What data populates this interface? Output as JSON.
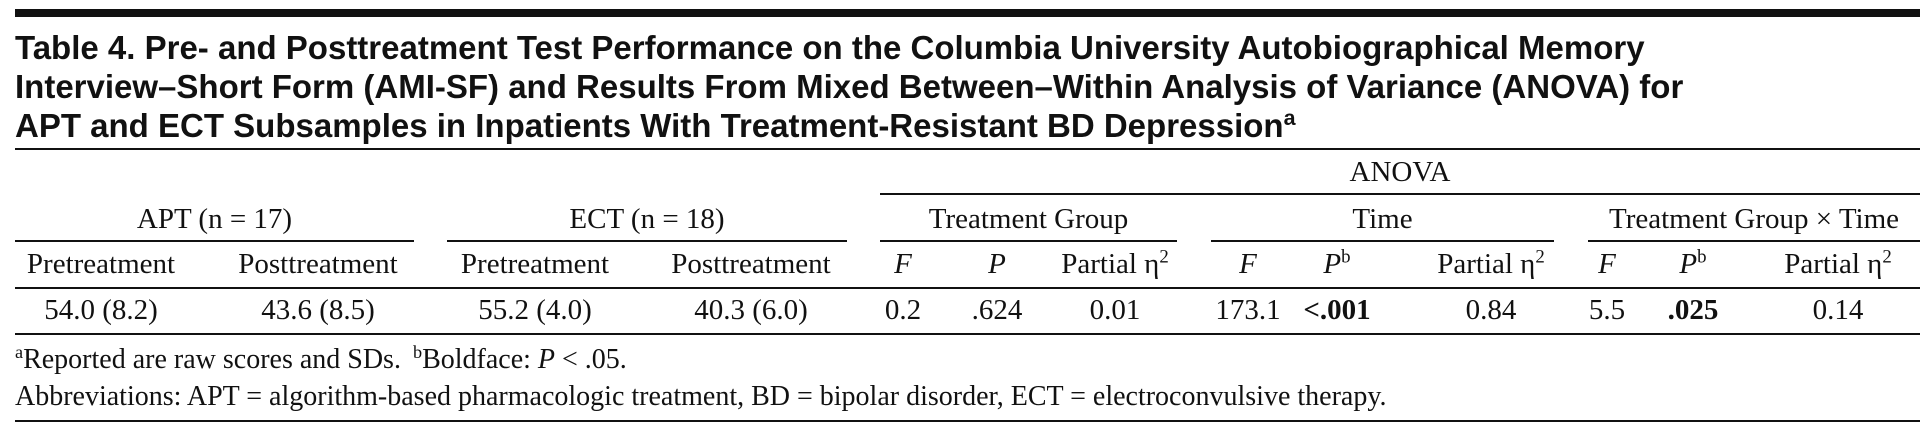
{
  "title": {
    "lines": [
      "Table 4. Pre- and Posttreatment Test Performance on the Columbia University Autobiographical Memory",
      "Interview–Short Form (AMI-SF) and Results From Mixed Between–Within Analysis of Variance (ANOVA) for",
      "APT and ECT Subsamples in Inpatients With Treatment-Resistant BD Depression"
    ],
    "note": "a"
  },
  "table": {
    "spanner": "ANOVA",
    "groups": [
      "APT (n = 17)",
      "ECT (n = 18)",
      "Treatment Group",
      "Time",
      "Treatment Group × Time"
    ],
    "columns": [
      {
        "text": "Pretreatment"
      },
      {
        "text": "Posttreatment"
      },
      {
        "text": "Pretreatment"
      },
      {
        "text": "Posttreatment"
      },
      {
        "text": "F",
        "italic": true
      },
      {
        "text": "P",
        "italic": true
      },
      {
        "text": "Partial η",
        "sup": "2"
      },
      {
        "text": "F",
        "italic": true
      },
      {
        "text": "P",
        "italic": true,
        "sup": "b"
      },
      {
        "text": "Partial η",
        "sup": "2"
      },
      {
        "text": "F",
        "italic": true
      },
      {
        "text": "P",
        "italic": true,
        "sup": "b"
      },
      {
        "text": "Partial η",
        "sup": "2"
      }
    ],
    "rows": [
      [
        "54.0 (8.2)",
        "43.6 (8.5)",
        "55.2 (4.0)",
        "40.3 (6.0)",
        "0.2",
        ".624",
        "0.01",
        "173.1",
        "<.001",
        "0.84",
        "5.5",
        ".025",
        "0.14"
      ]
    ],
    "bold": [
      [
        false,
        false,
        false,
        false,
        false,
        false,
        false,
        false,
        true,
        false,
        false,
        true,
        false
      ]
    ]
  },
  "footnotes": [
    [
      {
        "sup": "a"
      },
      {
        "text": "Reported are raw scores and SDs."
      },
      {
        "sup": "b"
      },
      {
        "text": "Boldface: "
      },
      {
        "text": "P",
        "italic": true
      },
      {
        "text": " < .05."
      }
    ],
    [
      {
        "text": "Abbreviations: APT = algorithm-based pharmacologic treatment, BD = bipolar disorder, ECT = electroconvulsive therapy."
      }
    ]
  ]
}
